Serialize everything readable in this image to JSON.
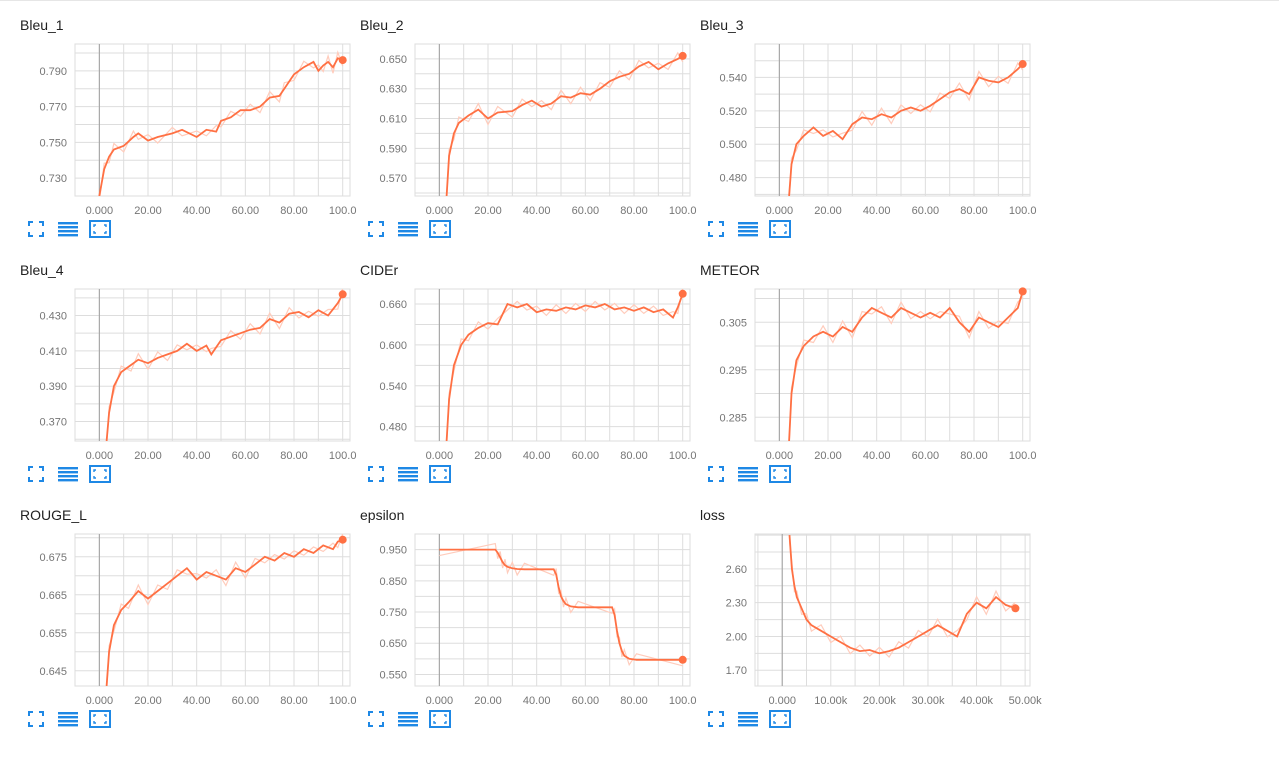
{
  "colors": {
    "accent": "#ff7043",
    "accent_light": "#ffccbc",
    "grid": "#dddddd",
    "axis": "#9e9e9e",
    "icon": "#1e88e5"
  },
  "icons": {
    "expand": "fullscreen-icon",
    "log": "list-icon",
    "fit": "fit-domain-icon"
  },
  "chart_data": [
    {
      "type": "line",
      "title": "Bleu_1",
      "xlim": [
        -10,
        103
      ],
      "ylim": [
        0.72,
        0.805
      ],
      "xticks": [
        0,
        20,
        40,
        60,
        80,
        100
      ],
      "xtick_labels": [
        "0.000",
        "20.00",
        "40.00",
        "60.00",
        "80.00",
        "100.0"
      ],
      "yticks": [
        0.73,
        0.75,
        0.77,
        0.79
      ],
      "ytick_labels": [
        "0.730",
        "0.750",
        "0.770",
        "0.790"
      ],
      "series": [
        {
          "x": [
            0,
            2,
            4,
            6,
            10,
            14,
            16,
            20,
            24,
            30,
            34,
            40,
            44,
            48,
            50,
            54,
            58,
            62,
            66,
            70,
            74,
            76,
            80,
            84,
            88,
            90,
            92,
            94,
            96,
            98,
            100
          ],
          "y": [
            0.72,
            0.735,
            0.742,
            0.746,
            0.748,
            0.753,
            0.755,
            0.751,
            0.753,
            0.755,
            0.757,
            0.753,
            0.757,
            0.756,
            0.762,
            0.764,
            0.768,
            0.768,
            0.77,
            0.775,
            0.776,
            0.78,
            0.788,
            0.792,
            0.795,
            0.79,
            0.793,
            0.795,
            0.792,
            0.797,
            0.796
          ]
        }
      ]
    },
    {
      "type": "line",
      "title": "Bleu_2",
      "xlim": [
        -10,
        103
      ],
      "ylim": [
        0.558,
        0.66
      ],
      "xticks": [
        0,
        20,
        40,
        60,
        80,
        100
      ],
      "xtick_labels": [
        "0.000",
        "20.00",
        "40.00",
        "60.00",
        "80.00",
        "100.0"
      ],
      "yticks": [
        0.57,
        0.59,
        0.61,
        0.63,
        0.65
      ],
      "ytick_labels": [
        "0.570",
        "0.590",
        "0.610",
        "0.630",
        "0.650"
      ],
      "series": [
        {
          "x": [
            3,
            4,
            6,
            8,
            12,
            16,
            20,
            24,
            30,
            34,
            38,
            42,
            46,
            50,
            54,
            58,
            62,
            66,
            70,
            74,
            78,
            82,
            86,
            90,
            94,
            98,
            100
          ],
          "y": [
            0.558,
            0.585,
            0.6,
            0.607,
            0.612,
            0.616,
            0.61,
            0.614,
            0.615,
            0.619,
            0.622,
            0.618,
            0.62,
            0.625,
            0.624,
            0.627,
            0.626,
            0.63,
            0.635,
            0.638,
            0.64,
            0.645,
            0.648,
            0.643,
            0.647,
            0.65,
            0.652
          ]
        }
      ]
    },
    {
      "type": "line",
      "title": "Bleu_3",
      "xlim": [
        -10,
        103
      ],
      "ylim": [
        0.469,
        0.56
      ],
      "xticks": [
        0,
        20,
        40,
        60,
        80,
        100
      ],
      "xtick_labels": [
        "0.000",
        "20.00",
        "40.00",
        "60.00",
        "80.00",
        "100.0"
      ],
      "yticks": [
        0.48,
        0.5,
        0.52,
        0.54
      ],
      "ytick_labels": [
        "0.480",
        "0.500",
        "0.520",
        "0.540"
      ],
      "series": [
        {
          "x": [
            4,
            5,
            7,
            10,
            14,
            18,
            22,
            26,
            30,
            34,
            38,
            42,
            46,
            50,
            54,
            58,
            62,
            66,
            70,
            74,
            78,
            82,
            86,
            90,
            94,
            98,
            100
          ],
          "y": [
            0.469,
            0.488,
            0.5,
            0.505,
            0.51,
            0.505,
            0.508,
            0.503,
            0.512,
            0.516,
            0.515,
            0.518,
            0.516,
            0.52,
            0.522,
            0.52,
            0.523,
            0.527,
            0.531,
            0.533,
            0.53,
            0.54,
            0.538,
            0.537,
            0.54,
            0.545,
            0.548
          ]
        }
      ]
    },
    {
      "type": "line",
      "title": "Bleu_4",
      "xlim": [
        -10,
        103
      ],
      "ylim": [
        0.359,
        0.445
      ],
      "xticks": [
        0,
        20,
        40,
        60,
        80,
        100
      ],
      "xtick_labels": [
        "0.000",
        "20.00",
        "40.00",
        "60.00",
        "80.00",
        "100.0"
      ],
      "yticks": [
        0.37,
        0.39,
        0.41,
        0.43
      ],
      "ytick_labels": [
        "0.370",
        "0.390",
        "0.410",
        "0.430"
      ],
      "series": [
        {
          "x": [
            3,
            4,
            6,
            9,
            13,
            16,
            20,
            24,
            28,
            32,
            36,
            40,
            44,
            46,
            50,
            54,
            58,
            62,
            66,
            70,
            74,
            78,
            82,
            86,
            90,
            94,
            98,
            100
          ],
          "y": [
            0.359,
            0.375,
            0.39,
            0.398,
            0.402,
            0.405,
            0.403,
            0.406,
            0.408,
            0.41,
            0.414,
            0.41,
            0.413,
            0.408,
            0.416,
            0.418,
            0.42,
            0.422,
            0.423,
            0.428,
            0.426,
            0.431,
            0.432,
            0.429,
            0.433,
            0.43,
            0.437,
            0.442
          ]
        }
      ]
    },
    {
      "type": "line",
      "title": "CIDEr",
      "xlim": [
        -10,
        103
      ],
      "ylim": [
        0.459,
        0.682
      ],
      "xticks": [
        0,
        20,
        40,
        60,
        80,
        100
      ],
      "xtick_labels": [
        "0.000",
        "20.00",
        "40.00",
        "60.00",
        "80.00",
        "100.0"
      ],
      "yticks": [
        0.48,
        0.54,
        0.6,
        0.66
      ],
      "ytick_labels": [
        "0.480",
        "0.540",
        "0.600",
        "0.660"
      ],
      "series": [
        {
          "x": [
            3,
            4,
            6,
            9,
            12,
            16,
            20,
            24,
            28,
            32,
            36,
            40,
            44,
            48,
            52,
            56,
            60,
            64,
            68,
            72,
            76,
            80,
            84,
            88,
            92,
            96,
            98,
            100
          ],
          "y": [
            0.459,
            0.52,
            0.57,
            0.6,
            0.615,
            0.625,
            0.632,
            0.63,
            0.66,
            0.655,
            0.66,
            0.648,
            0.652,
            0.65,
            0.655,
            0.652,
            0.658,
            0.655,
            0.66,
            0.652,
            0.655,
            0.65,
            0.655,
            0.648,
            0.652,
            0.64,
            0.655,
            0.675
          ]
        }
      ]
    },
    {
      "type": "line",
      "title": "METEOR",
      "xlim": [
        -10,
        103
      ],
      "ylim": [
        0.28,
        0.312
      ],
      "xticks": [
        0,
        20,
        40,
        60,
        80,
        100
      ],
      "xtick_labels": [
        "0.000",
        "20.00",
        "40.00",
        "60.00",
        "80.00",
        "100.0"
      ],
      "yticks": [
        0.285,
        0.295,
        0.305
      ],
      "ytick_labels": [
        "0.285",
        "0.295",
        "0.305"
      ],
      "series": [
        {
          "x": [
            4,
            5,
            7,
            10,
            14,
            18,
            22,
            26,
            30,
            34,
            38,
            42,
            46,
            50,
            54,
            58,
            62,
            66,
            70,
            74,
            78,
            82,
            86,
            90,
            94,
            98,
            100
          ],
          "y": [
            0.28,
            0.29,
            0.297,
            0.3,
            0.302,
            0.303,
            0.302,
            0.304,
            0.303,
            0.306,
            0.308,
            0.307,
            0.306,
            0.308,
            0.307,
            0.306,
            0.307,
            0.306,
            0.308,
            0.305,
            0.303,
            0.306,
            0.305,
            0.304,
            0.306,
            0.308,
            0.3115
          ]
        }
      ]
    },
    {
      "type": "line",
      "title": "ROUGE_L",
      "xlim": [
        -10,
        103
      ],
      "ylim": [
        0.641,
        0.681
      ],
      "xticks": [
        0,
        20,
        40,
        60,
        80,
        100
      ],
      "xtick_labels": [
        "0.000",
        "20.00",
        "40.00",
        "60.00",
        "80.00",
        "100.0"
      ],
      "yticks": [
        0.645,
        0.655,
        0.665,
        0.675
      ],
      "ytick_labels": [
        "0.645",
        "0.655",
        "0.665",
        "0.675"
      ],
      "series": [
        {
          "x": [
            3,
            4,
            6,
            9,
            12,
            16,
            20,
            24,
            28,
            32,
            36,
            40,
            44,
            48,
            52,
            56,
            60,
            64,
            68,
            72,
            76,
            80,
            84,
            88,
            92,
            96,
            98,
            100
          ],
          "y": [
            0.641,
            0.65,
            0.657,
            0.661,
            0.663,
            0.666,
            0.664,
            0.666,
            0.668,
            0.67,
            0.672,
            0.669,
            0.671,
            0.67,
            0.669,
            0.672,
            0.671,
            0.673,
            0.675,
            0.674,
            0.676,
            0.675,
            0.677,
            0.676,
            0.678,
            0.677,
            0.679,
            0.6795
          ]
        }
      ]
    },
    {
      "type": "line",
      "title": "epsilon",
      "xlim": [
        -10,
        103
      ],
      "ylim": [
        0.513,
        1.0
      ],
      "xticks": [
        0,
        20,
        40,
        60,
        80,
        100
      ],
      "xtick_labels": [
        "0.000",
        "20.00",
        "40.00",
        "60.00",
        "80.00",
        "100.0"
      ],
      "yticks": [
        0.55,
        0.65,
        0.75,
        0.85,
        0.95
      ],
      "ytick_labels": [
        "0.550",
        "0.650",
        "0.750",
        "0.850",
        "0.950"
      ],
      "series": [
        {
          "x": [
            0,
            23,
            24,
            25,
            26,
            27,
            28,
            30,
            32,
            35,
            47,
            48,
            49,
            50,
            51,
            52,
            54,
            57,
            71,
            72,
            73,
            74,
            75,
            76,
            78,
            81,
            100
          ],
          "y": [
            0.95,
            0.95,
            0.94,
            0.925,
            0.91,
            0.9,
            0.895,
            0.89,
            0.888,
            0.887,
            0.887,
            0.87,
            0.83,
            0.8,
            0.785,
            0.775,
            0.768,
            0.765,
            0.765,
            0.74,
            0.69,
            0.65,
            0.625,
            0.61,
            0.6,
            0.597,
            0.597
          ]
        }
      ]
    },
    {
      "type": "line",
      "title": "loss",
      "xlim": [
        -5600,
        51000
      ],
      "ylim": [
        1.56,
        2.91
      ],
      "xticks": [
        0,
        10000,
        20000,
        30000,
        40000,
        50000
      ],
      "xtick_labels": [
        "0.000",
        "10.00k",
        "20.00k",
        "30.00k",
        "40.00k",
        "50.00k"
      ],
      "yticks": [
        1.7,
        2.0,
        2.3,
        2.6
      ],
      "ytick_labels": [
        "1.70",
        "2.00",
        "2.30",
        "2.60"
      ],
      "series": [
        {
          "x": [
            1500,
            2000,
            2500,
            3000,
            4000,
            5000,
            6000,
            8000,
            10000,
            12000,
            14000,
            16000,
            18000,
            20000,
            22000,
            24000,
            26000,
            28000,
            30000,
            32000,
            34000,
            36000,
            38000,
            40000,
            42000,
            44000,
            46000,
            48000
          ],
          "y": [
            2.9,
            2.6,
            2.45,
            2.35,
            2.25,
            2.15,
            2.1,
            2.05,
            2.0,
            1.95,
            1.9,
            1.87,
            1.88,
            1.85,
            1.87,
            1.9,
            1.95,
            2.0,
            2.05,
            2.1,
            2.05,
            2.0,
            2.2,
            2.3,
            2.25,
            2.35,
            2.28,
            2.25
          ]
        }
      ]
    }
  ]
}
